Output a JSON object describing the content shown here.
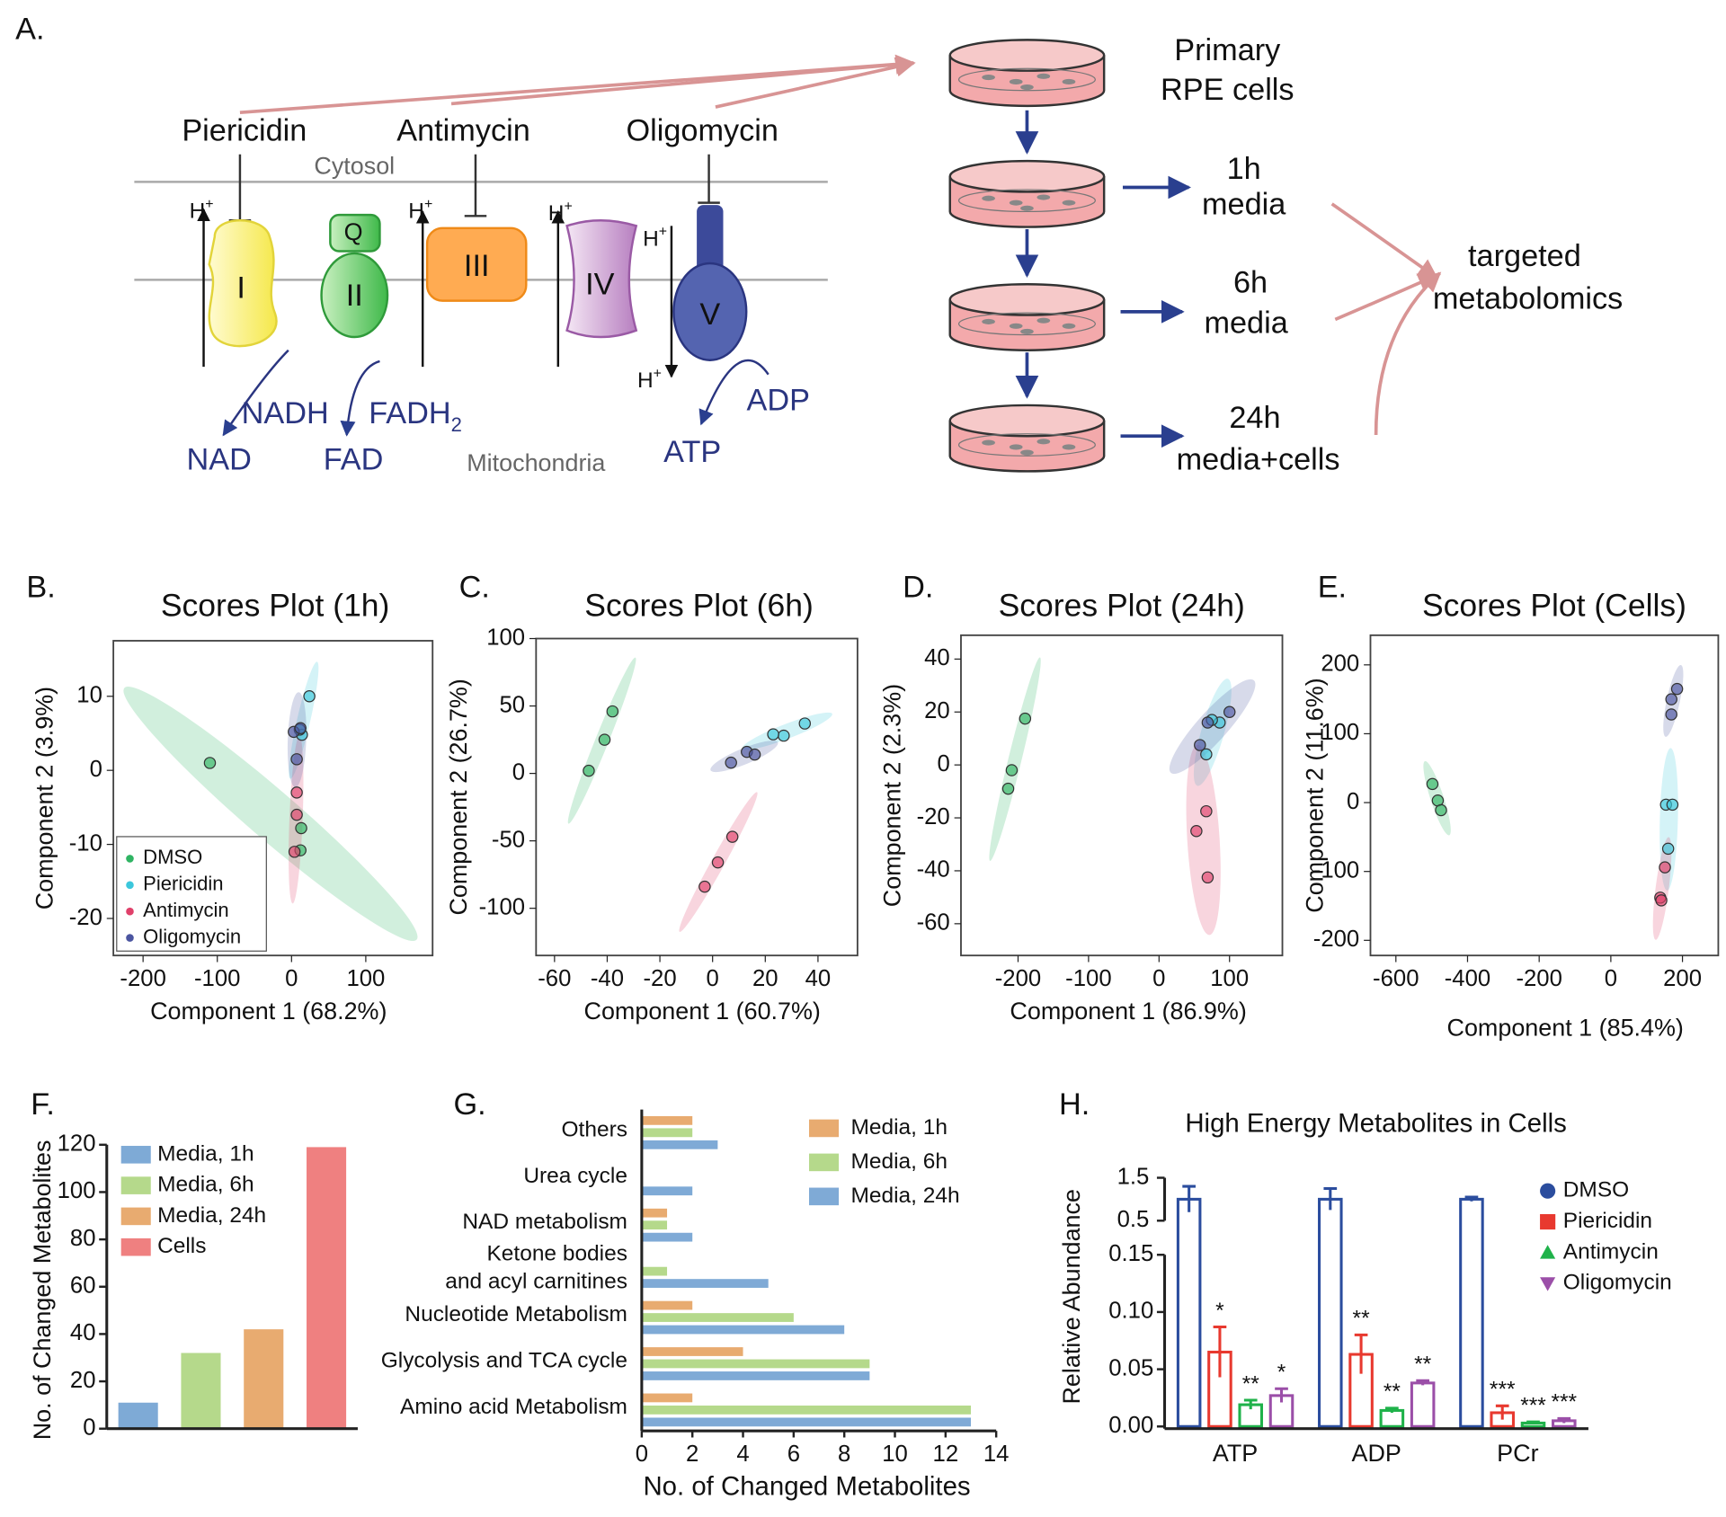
{
  "panel_labels": [
    "A.",
    "B.",
    "C.",
    "D.",
    "E.",
    "F.",
    "G.",
    "H."
  ],
  "diagram": {
    "inhibitors": [
      "Piericidin",
      "Antimycin",
      "Oligomycin"
    ],
    "compartments": {
      "outer": "Cytosol",
      "inner": "Mitochondria"
    },
    "complexes": [
      "I",
      "II",
      "III",
      "IV",
      "V"
    ],
    "quinone": "Q",
    "proton": {
      "base": "H",
      "sup": "+"
    },
    "metabolites": {
      "nadh": "NADH",
      "nad": "NAD",
      "fadh2": {
        "base": "FADH",
        "sub": "2"
      },
      "fad": "FAD",
      "adp": "ADP",
      "atp": "ATP"
    },
    "source": [
      "Primary",
      "RPE cells"
    ],
    "samples": [
      [
        "1h",
        "media"
      ],
      [
        "6h",
        "media"
      ],
      [
        "24h",
        "media+cells"
      ]
    ],
    "analysis": [
      "targeted",
      "metabolomics"
    ]
  },
  "chart_data": [
    {
      "type": "scatter",
      "title": "Scores Plot (1h)",
      "xlabel": "Component 1 (68.2%)",
      "ylabel": "Component 2 (3.9%)",
      "xlim": [
        -240,
        190
      ],
      "ylim": [
        -25,
        17.5
      ],
      "xticks": [
        -200,
        -100,
        0,
        100
      ],
      "yticks": [
        -20,
        -10,
        0,
        10
      ],
      "ellipses": true,
      "legend": "lower left",
      "series": [
        {
          "name": "DMSO",
          "color": "#2fb463",
          "x": [
            -110,
            13,
            12
          ],
          "values": [
            1,
            -7.8,
            -10.8
          ]
        },
        {
          "name": "Piericidin",
          "color": "#3cc7dc",
          "x": [
            24,
            14,
            11
          ],
          "values": [
            10,
            4.8,
            5.5
          ]
        },
        {
          "name": "Antimycin",
          "color": "#e0406a",
          "x": [
            7,
            7,
            4
          ],
          "values": [
            -3,
            -6,
            -11
          ]
        },
        {
          "name": "Oligomycin",
          "color": "#4b55a0",
          "x": [
            3,
            7,
            12
          ],
          "values": [
            5.2,
            1.5,
            5.7
          ]
        }
      ]
    },
    {
      "type": "scatter",
      "title": "Scores Plot (6h)",
      "xlabel": "Component 1 (60.7%)",
      "ylabel": "Component 2 (26.7%)",
      "xlim": [
        -67,
        55
      ],
      "ylim": [
        -135,
        100
      ],
      "xticks": [
        -60,
        -40,
        -20,
        0,
        20,
        40
      ],
      "yticks": [
        -100,
        -50,
        0,
        50,
        100
      ],
      "ellipses": true,
      "series": [
        {
          "name": "DMSO",
          "color": "#2fb463",
          "x": [
            -38,
            -41,
            -47
          ],
          "values": [
            46,
            25,
            2
          ]
        },
        {
          "name": "Piericidin",
          "color": "#3cc7dc",
          "x": [
            35,
            27,
            23
          ],
          "values": [
            37,
            28,
            29
          ]
        },
        {
          "name": "Antimycin",
          "color": "#e0406a",
          "x": [
            7.5,
            2,
            -3
          ],
          "values": [
            -47,
            -66,
            -84
          ]
        },
        {
          "name": "Oligomycin",
          "color": "#4b55a0",
          "x": [
            7,
            13,
            16
          ],
          "values": [
            8,
            16,
            14
          ]
        }
      ]
    },
    {
      "type": "scatter",
      "title": "Scores Plot (24h)",
      "xlabel": "Component 1 (86.9%)",
      "ylabel": "Component 2 (2.3%)",
      "xlim": [
        -281,
        175
      ],
      "ylim": [
        -72,
        49
      ],
      "xticks": [
        -200,
        -100,
        0,
        100
      ],
      "yticks": [
        -60,
        -40,
        -20,
        0,
        20,
        40
      ],
      "ellipses": true,
      "series": [
        {
          "name": "DMSO",
          "color": "#2fb463",
          "x": [
            -190,
            -209,
            -214
          ],
          "values": [
            17.5,
            -2,
            -9
          ]
        },
        {
          "name": "Piericidin",
          "color": "#3cc7dc",
          "x": [
            67,
            86,
            75
          ],
          "values": [
            4,
            16,
            17
          ]
        },
        {
          "name": "Antimycin",
          "color": "#e0406a",
          "x": [
            67,
            53,
            69
          ],
          "values": [
            -17.5,
            -25,
            -42.5
          ]
        },
        {
          "name": "Oligomycin",
          "color": "#4b55a0",
          "x": [
            100,
            69,
            58
          ],
          "values": [
            20,
            16,
            7.5
          ]
        }
      ]
    },
    {
      "type": "scatter",
      "title": "Scores Plot (Cells)",
      "xlabel": "Component 1 (85.4%)",
      "ylabel": "Component 2 (11.6%)",
      "xlim": [
        -671,
        300
      ],
      "ylim": [
        -222,
        243
      ],
      "xticks": [
        -600,
        -400,
        -200,
        0,
        200
      ],
      "yticks": [
        -200,
        -100,
        0,
        100,
        200
      ],
      "ellipses": true,
      "series": [
        {
          "name": "DMSO",
          "color": "#2fb463",
          "x": [
            -498,
            -483,
            -474
          ],
          "values": [
            27,
            3,
            -11
          ]
        },
        {
          "name": "Piericidin",
          "color": "#3cc7dc",
          "x": [
            154,
            172,
            160
          ],
          "values": [
            -3,
            -3,
            -67
          ]
        },
        {
          "name": "Antimycin",
          "color": "#e0406a",
          "x": [
            151,
            138,
            141
          ],
          "values": [
            -94,
            -138,
            -142
          ]
        },
        {
          "name": "Oligomycin",
          "color": "#4b55a0",
          "x": [
            185,
            169,
            169
          ],
          "values": [
            165,
            150,
            128
          ]
        }
      ]
    },
    {
      "type": "bar",
      "ylabel": "No. of Changed Metabolites",
      "categories": [
        "Media, 1h",
        "Media, 6h",
        "Media, 24h",
        "Cells"
      ],
      "values": [
        11,
        32,
        42,
        119
      ],
      "colors": [
        "#7eaad6",
        "#b5d98b",
        "#e8ab70",
        "#ef8080"
      ],
      "ylim": [
        0,
        120
      ],
      "yticks": [
        0,
        20,
        40,
        60,
        80,
        100,
        120
      ],
      "legend": "upper left"
    },
    {
      "type": "barh",
      "xlabel": "No. of Changed Metabolites",
      "categories": [
        "Others",
        "Urea cycle",
        "NAD metabolism",
        [
          "Ketone bodies",
          "and acyl carnitines"
        ],
        "Nucleotide Metabolism",
        "Glycolysis and TCA cycle",
        "Amino acid Metabolism"
      ],
      "series": [
        {
          "name": "Media, 1h",
          "color": "#e8ab70",
          "values": [
            2,
            0,
            1,
            0,
            2,
            4,
            2
          ]
        },
        {
          "name": "Media, 6h",
          "color": "#b5d98b",
          "values": [
            2,
            0,
            1,
            1,
            6,
            9,
            13
          ]
        },
        {
          "name": "Media, 24h",
          "color": "#7faad6",
          "values": [
            3,
            2,
            2,
            5,
            8,
            9,
            13
          ]
        }
      ],
      "xlim": [
        0,
        14
      ],
      "xticks": [
        0,
        2,
        4,
        6,
        8,
        10,
        12,
        14
      ],
      "legend": "upper right"
    },
    {
      "type": "bar_break",
      "title": "High Energy Metabolites in Cells",
      "ylabel": "Relative Abundance",
      "categories": [
        "ATP",
        "ADP",
        "PCr"
      ],
      "series": [
        {
          "name": "DMSO",
          "color": "#2b4d9e",
          "marker": "circle",
          "values": [
            1.0,
            1.0,
            1.0
          ],
          "errors": [
            0.3,
            0.25,
            0.05
          ]
        },
        {
          "name": "Piericidin",
          "color": "#e8392f",
          "marker": "square",
          "values": [
            0.065,
            0.063,
            0.012
          ],
          "errors": [
            0.022,
            0.017,
            0.006
          ],
          "significance": [
            "*",
            "**",
            "***"
          ]
        },
        {
          "name": "Antimycin",
          "color": "#1fb24a",
          "marker": "triangle",
          "values": [
            0.019,
            0.014,
            0.003
          ],
          "errors": [
            0.004,
            0.002,
            0.001
          ],
          "significance": [
            "**",
            "**",
            "***"
          ]
        },
        {
          "name": "Oligomycin",
          "color": "#9b4fa8",
          "marker": "triangle-down",
          "values": [
            0.027,
            0.038,
            0.005
          ],
          "errors": [
            0.006,
            0.002,
            0.002
          ],
          "significance": [
            "*",
            "**",
            "***"
          ]
        }
      ],
      "ylim": [
        0,
        0.15
      ],
      "yticks": [
        {
          "value": 0,
          "label": "0.00"
        },
        {
          "value": 0.05,
          "label": "0.05"
        },
        {
          "value": 0.1,
          "label": "0.10"
        },
        {
          "value": 0.15,
          "label": "0.15"
        }
      ],
      "y_break_lim": [
        0.5,
        1.5
      ],
      "y_break_ticks": [
        0.5,
        1.5
      ],
      "legend": "upper right"
    }
  ]
}
